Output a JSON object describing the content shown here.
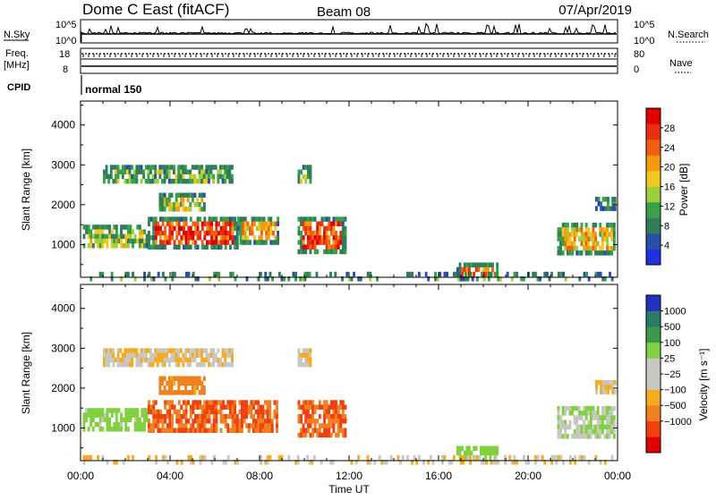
{
  "header": {
    "station": "Dome C East (fitACF)",
    "beam": "Beam 08",
    "date": "07/Apr/2019"
  },
  "status_panel": {
    "nsky_label": "N.Sky",
    "nsearch_label": "N.Search",
    "nsky_ticks": [
      "10^5",
      "10^0"
    ],
    "nsearch_ticks": [
      "10^5",
      "10^0"
    ],
    "freq_label": "Freq.",
    "freq_unit": "[MHz]",
    "freq_ticks": [
      "18",
      "8"
    ],
    "nave_label": "Nave",
    "nave_ticks": [
      "80",
      "0"
    ],
    "cpid_label": "CPID",
    "cpid_value": "normal 150"
  },
  "colors": {
    "power_scale": [
      "#2030e0",
      "#2b4fa8",
      "#2f7d5a",
      "#39a04a",
      "#9ccf3a",
      "#f2c820",
      "#f59a10",
      "#f06010",
      "#e83010",
      "#e00000"
    ],
    "velocity_scale": [
      "#e00000",
      "#f04010",
      "#f08020",
      "#f5aa20",
      "#c8c8c0",
      "#c8c8c0",
      "#80d040",
      "#3a9a4a",
      "#2a7a6a",
      "#2030c0"
    ]
  },
  "chart_data": [
    {
      "type": "heatmap",
      "name": "power",
      "ylabel": "Slant Range [km]",
      "xlabel": "Time UT",
      "x_ticks": [
        "00:00",
        "04:00",
        "08:00",
        "12:00",
        "16:00",
        "20:00",
        "00:00"
      ],
      "x_range_hours": [
        0,
        24
      ],
      "y_ticks": [
        1000,
        2000,
        3000,
        4000
      ],
      "ylim": [
        180,
        4600
      ],
      "colorbar_label": "Power [dB]",
      "colorbar_ticks": [
        4,
        8,
        12,
        16,
        20,
        24,
        28
      ],
      "colorbar_range": [
        0,
        32
      ],
      "regions": [
        {
          "t0": 0.1,
          "t1": 3.0,
          "r0": 950,
          "r1": 1500,
          "value": 14
        },
        {
          "t0": 3.0,
          "t1": 7.0,
          "r0": 950,
          "r1": 1700,
          "value": 26
        },
        {
          "t0": 7.0,
          "t1": 8.8,
          "r0": 1100,
          "r1": 1700,
          "value": 20
        },
        {
          "t0": 1.0,
          "t1": 6.8,
          "r0": 2550,
          "r1": 3000,
          "value": 12
        },
        {
          "t0": 3.5,
          "t1": 5.5,
          "r0": 1900,
          "r1": 2300,
          "value": 16
        },
        {
          "t0": 9.7,
          "t1": 11.8,
          "r0": 800,
          "r1": 1700,
          "value": 26
        },
        {
          "t0": 9.7,
          "t1": 10.3,
          "r0": 2600,
          "r1": 3000,
          "value": 12
        },
        {
          "t0": 16.8,
          "t1": 18.6,
          "r0": 220,
          "r1": 550,
          "value": 24
        },
        {
          "t0": 21.3,
          "t1": 23.9,
          "r0": 800,
          "r1": 1550,
          "value": 18
        },
        {
          "t0": 23.0,
          "t1": 23.9,
          "r0": 1900,
          "r1": 2200,
          "value": 8
        },
        {
          "t0": 0.1,
          "t1": 23.9,
          "r0": 180,
          "r1": 320,
          "value": 10
        }
      ]
    },
    {
      "type": "heatmap",
      "name": "velocity",
      "ylabel": "Slant Range [km]",
      "xlabel": "Time UT",
      "x_ticks": [
        "00:00",
        "04:00",
        "08:00",
        "12:00",
        "16:00",
        "20:00",
        "00:00"
      ],
      "x_range_hours": [
        0,
        24
      ],
      "y_ticks": [
        1000,
        2000,
        3000,
        4000
      ],
      "ylim": [
        180,
        4600
      ],
      "colorbar_label": "Velocity [m s⁻¹]",
      "colorbar_ticks": [
        "1000",
        "500",
        "100",
        "25",
        "−25",
        "−100",
        "−500",
        "−1000"
      ],
      "regions": [
        {
          "t0": 0.1,
          "t1": 3.0,
          "r0": 950,
          "r1": 1500,
          "value": 100
        },
        {
          "t0": 3.0,
          "t1": 8.8,
          "r0": 950,
          "r1": 1700,
          "value": -300
        },
        {
          "t0": 1.0,
          "t1": 6.8,
          "r0": 2550,
          "r1": 3000,
          "value": 0
        },
        {
          "t0": 3.5,
          "t1": 5.5,
          "r0": 1900,
          "r1": 2300,
          "value": -100
        },
        {
          "t0": 9.7,
          "t1": 11.8,
          "r0": 800,
          "r1": 1700,
          "value": -300
        },
        {
          "t0": 9.7,
          "t1": 10.3,
          "r0": 2600,
          "r1": 3000,
          "value": 0
        },
        {
          "t0": 16.8,
          "t1": 18.6,
          "r0": 220,
          "r1": 550,
          "value": 150
        },
        {
          "t0": 21.3,
          "t1": 23.9,
          "r0": 800,
          "r1": 1550,
          "value": 50
        },
        {
          "t0": 23.0,
          "t1": 23.9,
          "r0": 1900,
          "r1": 2200,
          "value": 0
        },
        {
          "t0": 0.1,
          "t1": 23.9,
          "r0": 180,
          "r1": 320,
          "value": 0
        }
      ]
    }
  ]
}
